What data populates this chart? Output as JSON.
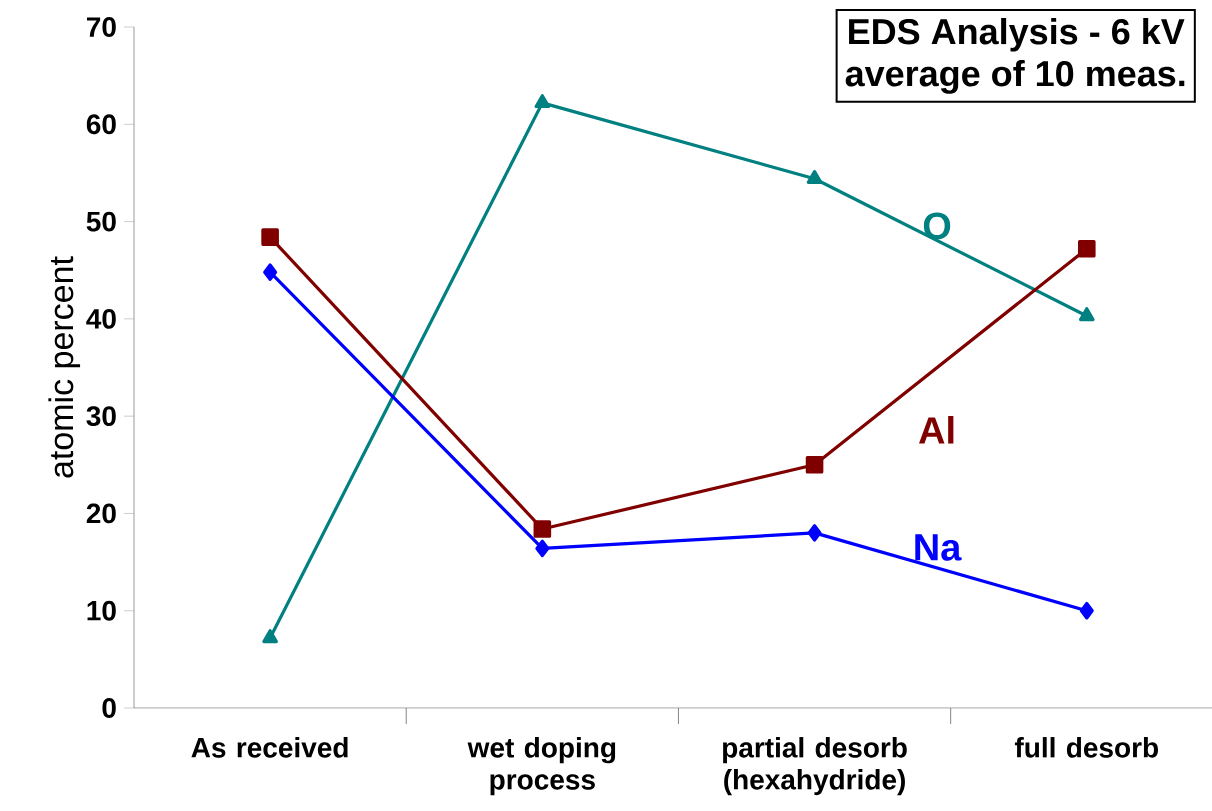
{
  "chart_data": {
    "type": "line",
    "ylabel": "atomic percent",
    "annotations": [
      "EDS Analysis - 6 kV",
      "average of 10 meas."
    ],
    "categories": [
      "As received",
      "wet doping process",
      "partial desorb (hexahydride)",
      "full desorb"
    ],
    "series": [
      {
        "name": "O",
        "color": "#008080",
        "marker": "triangle",
        "values": [
          7.2,
          62.2,
          54.4,
          40.3
        ]
      },
      {
        "name": "Al",
        "color": "#800000",
        "marker": "square",
        "values": [
          48.4,
          18.4,
          25.0,
          47.2
        ]
      },
      {
        "name": "Na",
        "color": "#0000ff",
        "marker": "diamond",
        "values": [
          44.8,
          16.4,
          18.0,
          10.0
        ]
      }
    ],
    "ylim": [
      0,
      70
    ],
    "yticks": [
      0,
      10,
      20,
      30,
      40,
      50,
      60,
      70
    ],
    "grid": false
  }
}
